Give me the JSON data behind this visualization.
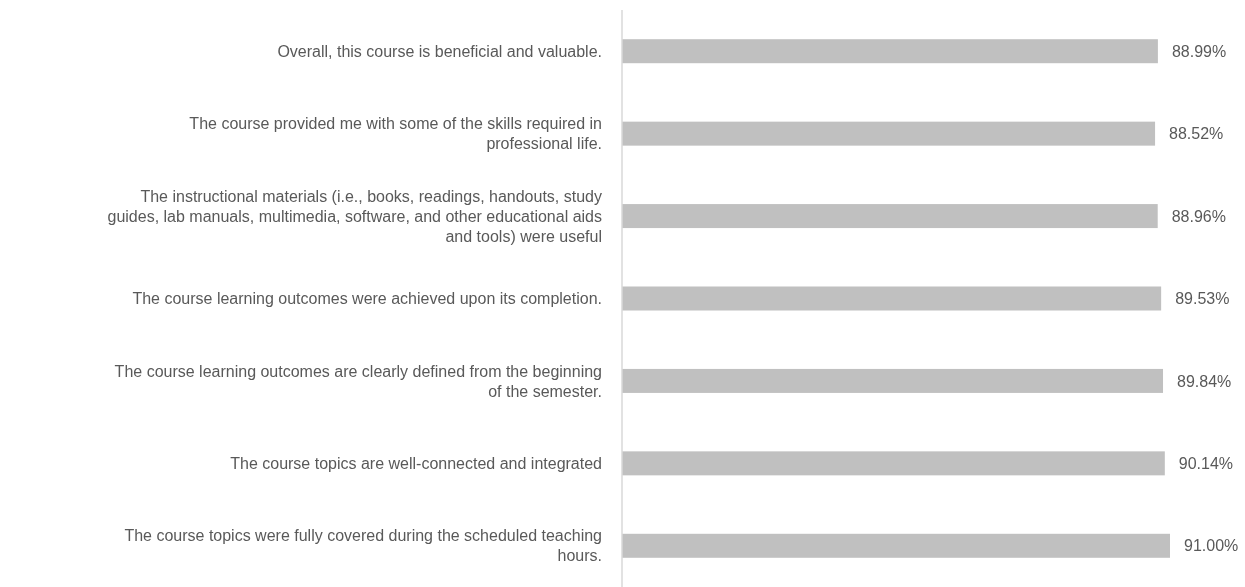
{
  "chart_data": {
    "type": "bar",
    "orientation": "horizontal",
    "color": "#c0c0c0",
    "categories": [
      "Overall, this course is beneficial and valuable.",
      "The course provided me with some of the skills required in professional life.",
      "The instructional materials (i.e., books, readings, handouts, study guides, lab manuals, multimedia, software, and other educational aids and tools) were useful",
      "The course learning outcomes were achieved upon its completion.",
      "The course learning outcomes are clearly defined from the beginning of the semester.",
      "The course topics are well-connected and integrated",
      "The course topics were fully covered during the scheduled teaching hours."
    ],
    "values": [
      88.99,
      88.52,
      88.96,
      89.53,
      89.84,
      90.14,
      91.0
    ],
    "value_labels": [
      "88.99%",
      "88.52%",
      "88.96%",
      "89.53%",
      "89.84%",
      "90.14%",
      "91.00%"
    ]
  }
}
